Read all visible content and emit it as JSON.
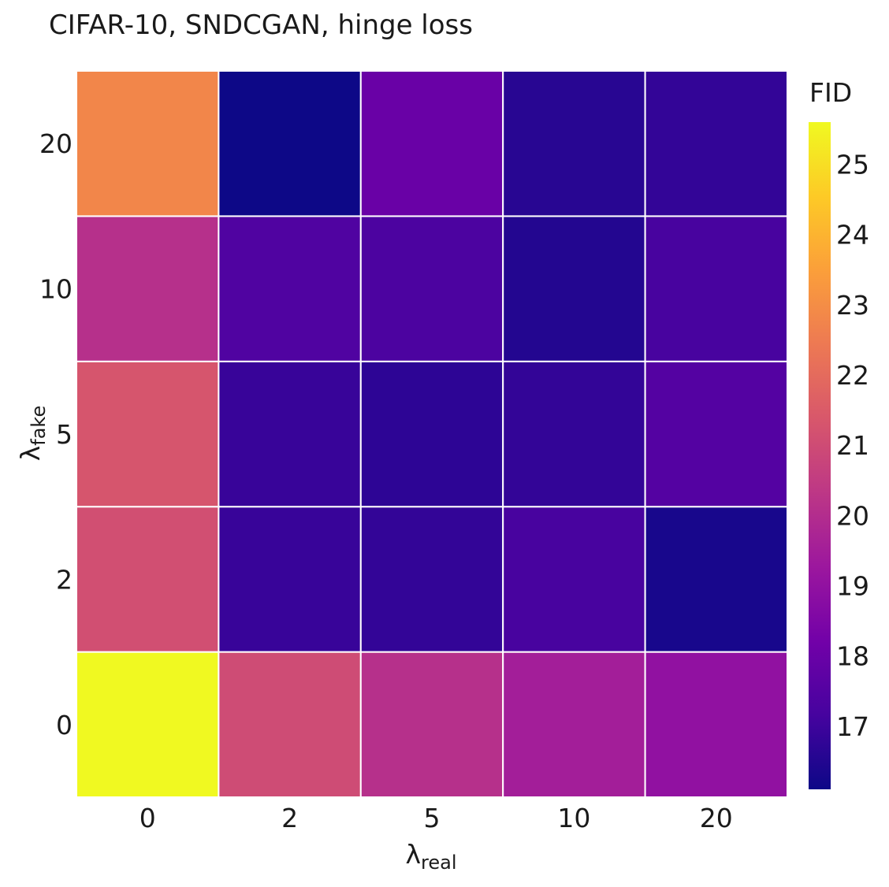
{
  "chart_data": {
    "type": "heatmap",
    "title": "CIFAR-10, SNDCGAN, hinge loss",
    "xlabel": {
      "base": "λ",
      "sub": "real"
    },
    "ylabel": {
      "base": "λ",
      "sub": "fake"
    },
    "x_categories": [
      "0",
      "2",
      "5",
      "10",
      "20"
    ],
    "y_categories": [
      "0",
      "2",
      "5",
      "10",
      "20"
    ],
    "z": [
      [
        25.6,
        21.0,
        20.1,
        19.5,
        19.0
      ],
      [
        21.1,
        16.9,
        16.8,
        17.2,
        16.3
      ],
      [
        21.3,
        16.9,
        16.7,
        16.8,
        17.5
      ],
      [
        20.1,
        17.4,
        17.3,
        16.5,
        17.2
      ],
      [
        22.8,
        16.1,
        18.0,
        16.6,
        16.8
      ]
    ],
    "colorbar": {
      "title": "FID",
      "min": 16.1,
      "max": 25.6,
      "ticks": [
        17,
        18,
        19,
        20,
        21,
        22,
        23,
        24,
        25
      ],
      "tick_labels": [
        "17",
        "18",
        "19",
        "20",
        "21",
        "22",
        "23",
        "24",
        "25"
      ]
    },
    "colorscale": "plasma",
    "colorscale_stops": [
      "#0d0887",
      "#46039f",
      "#7201a8",
      "#9c179e",
      "#bd3786",
      "#d8576b",
      "#ed7953",
      "#fb9f3a",
      "#fdca26",
      "#f0f921"
    ],
    "grid": false,
    "legend": "colorbar-right"
  }
}
